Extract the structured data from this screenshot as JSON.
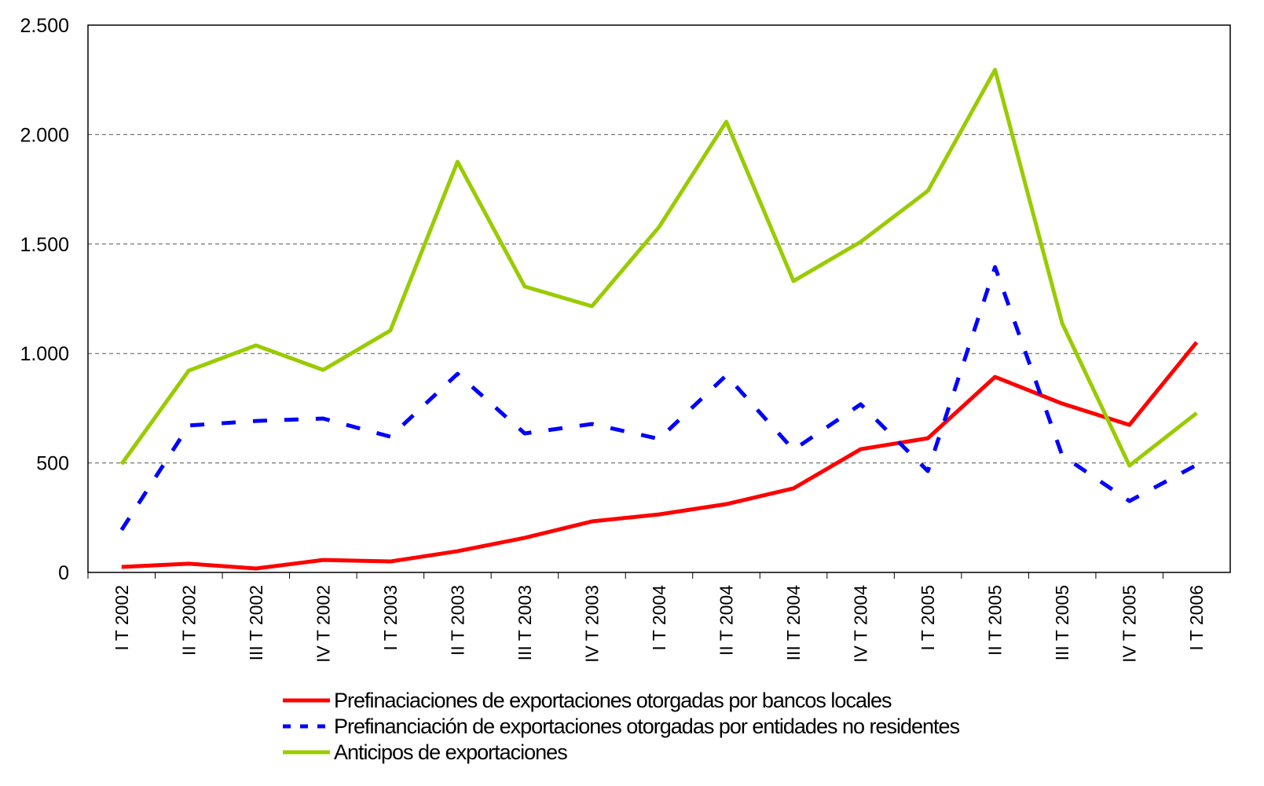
{
  "chart_data": {
    "type": "line",
    "categories": [
      "I T 2002",
      "II T 2002",
      "III T 2002",
      "IV T 2002",
      "I T 2003",
      "II T 2003",
      "III T 2003",
      "IV T 2003",
      "I T 2004",
      "II T 2004",
      "III T 2004",
      "IV T 2004",
      "I T 2005",
      "II T 2005",
      "III T 2005",
      "IV T 2005",
      "I T 2006"
    ],
    "series": [
      {
        "name": "Prefinaciaciones de exportaciones otorgadas por bancos locales",
        "color": "#ff0000",
        "dash": false,
        "values": [
          25,
          40,
          18,
          57,
          50,
          97,
          158,
          233,
          265,
          312,
          384,
          563,
          613,
          893,
          771,
          674,
          1051
        ]
      },
      {
        "name": "Prefinanciación de exportaciones otorgadas por entidades no residentes",
        "color": "#0000ff",
        "dash": true,
        "values": [
          194,
          671,
          692,
          703,
          620,
          907,
          635,
          678,
          610,
          900,
          560,
          768,
          463,
          1395,
          534,
          326,
          491
        ]
      },
      {
        "name": "Anticipos de exportaciones",
        "color": "#99cc00",
        "dash": false,
        "values": [
          495,
          922,
          1037,
          925,
          1105,
          1876,
          1306,
          1216,
          1578,
          2059,
          1331,
          1510,
          1743,
          2296,
          1137,
          488,
          728
        ]
      }
    ],
    "ylim": [
      0,
      2500
    ],
    "yticks": [
      0,
      500,
      {
        "value": 1000,
        "label": "1.000"
      },
      {
        "value": 1500,
        "label": "1.500"
      },
      {
        "value": 2000,
        "label": "2.000"
      },
      {
        "value": 2500,
        "label": "2.500"
      }
    ],
    "grid": true,
    "legend": "bottom"
  }
}
